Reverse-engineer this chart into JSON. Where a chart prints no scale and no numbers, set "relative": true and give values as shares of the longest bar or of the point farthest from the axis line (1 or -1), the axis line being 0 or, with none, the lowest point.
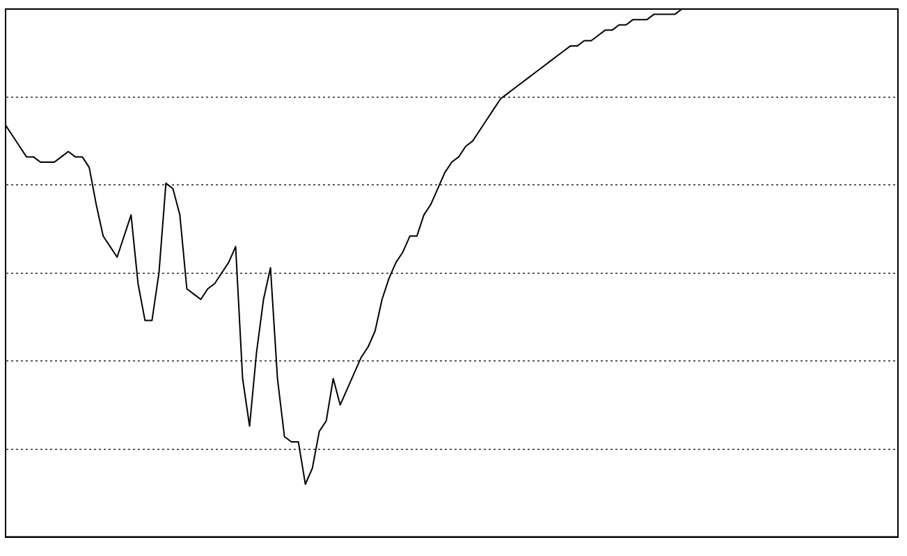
{
  "chart_data": {
    "type": "line",
    "relative": true,
    "grid": "y",
    "marker": "none",
    "line_style": "solid",
    "categories": [
      null,
      null,
      null,
      null,
      null,
      null,
      null,
      null,
      null,
      null,
      null,
      null,
      null,
      null,
      null,
      null,
      null,
      null,
      null,
      null,
      null,
      null,
      null,
      null,
      null,
      null,
      null,
      null,
      null,
      null,
      null,
      null,
      null,
      null,
      null,
      null,
      null,
      null,
      null,
      null,
      null,
      null,
      null,
      null,
      null,
      null,
      null,
      null,
      null,
      null,
      null,
      null,
      null,
      null,
      null,
      null,
      null,
      null,
      null,
      null,
      null,
      null,
      null,
      null,
      null,
      null,
      null,
      null,
      null,
      null,
      null,
      null,
      null,
      null,
      null,
      null,
      null,
      null,
      null,
      null,
      null,
      null,
      null,
      null,
      null,
      null,
      null,
      null,
      null,
      null,
      null,
      null,
      null,
      null,
      null,
      null,
      null,
      null,
      null,
      null,
      null,
      null,
      null,
      null,
      null,
      null,
      null,
      null,
      null,
      null,
      null,
      null,
      null,
      null,
      null,
      null,
      null,
      null,
      null,
      null,
      null,
      null,
      null,
      null,
      null,
      null,
      null,
      null,
      null
    ],
    "series": [
      {
        "color": "#000000",
        "values": [
          0.78,
          0.76,
          0.74,
          0.72,
          0.72,
          0.71,
          0.71,
          0.71,
          0.72,
          0.73,
          0.72,
          0.72,
          0.7,
          0.63,
          0.57,
          0.55,
          0.53,
          0.57,
          0.61,
          0.48,
          0.41,
          0.41,
          0.5,
          0.67,
          0.66,
          0.61,
          0.47,
          0.46,
          0.45,
          0.47,
          0.48,
          0.5,
          0.52,
          0.55,
          0.3,
          0.21,
          0.35,
          0.45,
          0.51,
          0.3,
          0.19,
          0.18,
          0.18,
          0.1,
          0.13,
          0.2,
          0.22,
          0.3,
          0.25,
          0.28,
          0.31,
          0.34,
          0.36,
          0.39,
          0.45,
          0.49,
          0.52,
          0.54,
          0.57,
          0.57,
          0.61,
          0.63,
          0.66,
          0.69,
          0.71,
          0.72,
          0.74,
          0.75,
          0.77,
          0.79,
          0.81,
          0.83,
          0.84,
          0.85,
          0.86,
          0.87,
          0.88,
          0.89,
          0.9,
          0.91,
          0.92,
          0.93,
          0.93,
          0.94,
          0.94,
          0.95,
          0.96,
          0.96,
          0.97,
          0.97,
          0.98,
          0.98,
          0.98,
          0.99,
          0.99,
          0.99,
          0.99,
          1,
          1,
          1,
          1,
          1,
          1,
          1,
          1,
          1,
          1,
          1,
          1,
          1,
          1,
          1,
          1,
          1,
          1,
          1,
          1,
          1,
          1,
          1,
          1,
          1,
          1,
          1,
          1,
          1,
          1,
          1,
          1
        ]
      }
    ]
  }
}
